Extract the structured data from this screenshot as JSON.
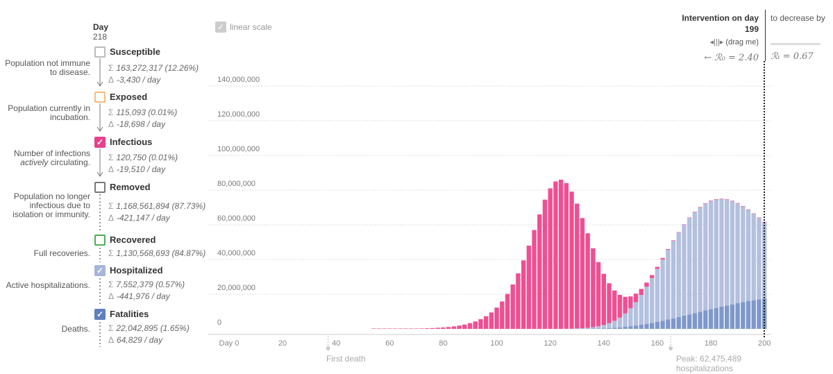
{
  "header": {
    "day_label": "Day",
    "day_value": "218",
    "linear_scale_label": "linear scale"
  },
  "compartments": [
    {
      "name": "Susceptible",
      "desc": "Population not immune to disease.",
      "sum": "163,272,317 (12.26%)",
      "delta": "-3,430 / day",
      "checked": false,
      "color": "#bbbbbb"
    },
    {
      "name": "Exposed",
      "desc": "Population currently in incubation.",
      "sum": "115,093 (0.01%)",
      "delta": "-18,698 / day",
      "checked": false,
      "color": "#fcb97a"
    },
    {
      "name": "Infectious",
      "desc_pre": "Number of infections ",
      "desc_em": "actively",
      "desc_post": " circulating.",
      "sum": "120,750 (0.01%)",
      "delta": "-19,510 / day",
      "checked": true,
      "color": "#e8408b"
    },
    {
      "name": "Removed",
      "desc": "Population no longer infectious due to isolation or immunity.",
      "sum": "1,168,561,894 (87.73%)",
      "delta": "-421,147 / day",
      "checked": false,
      "color": "#777777"
    },
    {
      "name": "Recovered",
      "desc": "Full recoveries.",
      "sum": "1,130,568,693 (84.87%)",
      "checked": false,
      "color": "#4caf50"
    },
    {
      "name": "Hospitalized",
      "desc": "Active hospitalizations.",
      "sum": "7,552,379 (0.57%)",
      "delta": "-441,976 / day",
      "checked": true,
      "color": "#a6b5d8"
    },
    {
      "name": "Fatalities",
      "desc": "Deaths.",
      "sum": "22,042,895 (1.65%)",
      "delta": "64,829 / day",
      "checked": true,
      "color": "#5f7fbf"
    }
  ],
  "intervention": {
    "title": "Intervention on day",
    "day": "199",
    "drag_label": "(drag me)",
    "r0_text": "← ℛ₀ = 2.40",
    "decrease_label": "to decrease by",
    "rt_text": "ℛₜ = 0.67"
  },
  "annotations": {
    "first_death": "First death",
    "peak_line1": "Peak: 62,475,489",
    "peak_line2": "hospitalizations"
  },
  "chart_data": {
    "type": "bar",
    "stacked": true,
    "x_ticks": [
      "Day 0",
      "20",
      "40",
      "60",
      "80",
      "100",
      "120",
      "140",
      "160",
      "180",
      "200"
    ],
    "y_ticks": [
      "0",
      "20,000,000",
      "40,000,000",
      "60,000,000",
      "80,000,000",
      "100,000,000",
      "120,000,000",
      "140,000,000"
    ],
    "xlim": [
      0,
      201
    ],
    "ylim": [
      0,
      150000000
    ],
    "bar_days": [
      0,
      2,
      4,
      6,
      8,
      10,
      12,
      14,
      16,
      18,
      20,
      22,
      24,
      26,
      28,
      30,
      32,
      34,
      36,
      38,
      40,
      42,
      44,
      46,
      48,
      50,
      52,
      54,
      56,
      58,
      60,
      62,
      64,
      66,
      68,
      70,
      72,
      74,
      76,
      78,
      80,
      82,
      84,
      86,
      88,
      90,
      92,
      94,
      96,
      98,
      100,
      102,
      104,
      106,
      108,
      110,
      112,
      114,
      116,
      118,
      120,
      122,
      124,
      126,
      128,
      130,
      132,
      134,
      136,
      138,
      140,
      142,
      144,
      146,
      148,
      150,
      152,
      154,
      156,
      158,
      160,
      162,
      164,
      166,
      168,
      170,
      172,
      174,
      176,
      178,
      180,
      182,
      184,
      186,
      188,
      190,
      192,
      194,
      196,
      198,
      200
    ],
    "series": [
      {
        "name": "Fatalities",
        "color": "#7f98cb",
        "values": [
          0,
          0,
          0,
          0,
          0,
          0,
          0,
          0,
          0,
          0,
          0,
          0,
          0,
          0,
          0,
          0,
          0,
          0,
          0,
          0,
          0,
          0,
          0,
          0,
          0,
          0,
          0,
          0,
          0,
          0,
          0,
          0,
          0,
          0,
          0,
          0,
          0,
          0,
          0,
          0,
          0,
          0,
          0,
          0,
          0,
          0,
          0,
          0,
          0,
          0,
          0,
          0,
          0,
          0,
          0,
          0,
          0,
          0,
          0,
          0,
          0,
          0,
          0,
          10000,
          20000,
          40000,
          70000,
          120000,
          180000,
          260000,
          360000,
          500000,
          680000,
          900000,
          1200000,
          1550000,
          1950000,
          2400000,
          2900000,
          3450000,
          4050000,
          4700000,
          5400000,
          6100000,
          6850000,
          7600000,
          8350000,
          9100000,
          9850000,
          10600000,
          11350000,
          12100000,
          12800000,
          13500000,
          14150000,
          14800000,
          15400000,
          16000000,
          16550000,
          17050000,
          17500000
        ]
      },
      {
        "name": "Hospitalized",
        "color": "#b3c0de",
        "values": [
          0,
          0,
          0,
          0,
          0,
          0,
          0,
          0,
          0,
          0,
          0,
          0,
          0,
          0,
          0,
          0,
          0,
          0,
          0,
          0,
          0,
          0,
          0,
          0,
          0,
          0,
          0,
          0,
          0,
          0,
          0,
          0,
          0,
          0,
          0,
          0,
          0,
          0,
          0,
          0,
          0,
          0,
          0,
          0,
          0,
          0,
          0,
          0,
          0,
          0,
          0,
          0,
          0,
          0,
          0,
          0,
          0,
          0,
          0,
          0,
          10000,
          20000,
          40000,
          70000,
          120000,
          200000,
          320000,
          500000,
          800000,
          1250000,
          1900000,
          2800000,
          4000000,
          5600000,
          7700000,
          10300000,
          13500000,
          17200000,
          21400000,
          25900000,
          30600000,
          35400000,
          40100000,
          44600000,
          48700000,
          52400000,
          55600000,
          58200000,
          60200000,
          61600000,
          62400000,
          62475489,
          62000000,
          61000000,
          59500000,
          57500000,
          55200000,
          52600000,
          49800000,
          46900000,
          44000000
        ]
      },
      {
        "name": "Infectious",
        "color": "#ee4f93",
        "values": [
          0,
          0,
          0,
          0,
          0,
          0,
          0,
          0,
          0,
          0,
          0,
          0,
          0,
          0,
          0,
          0,
          0,
          0,
          0,
          0,
          0,
          0,
          0,
          0,
          0,
          0,
          0,
          10000,
          20000,
          30000,
          40000,
          60000,
          80000,
          110000,
          150000,
          200000,
          270000,
          360000,
          480000,
          640000,
          850000,
          1100000,
          1450000,
          1900000,
          2500000,
          3300000,
          4300000,
          5600000,
          7300000,
          9500000,
          12300000,
          15800000,
          20200000,
          25600000,
          32000000,
          39500000,
          48000000,
          57000000,
          66000000,
          74500000,
          81000000,
          85000000,
          86000000,
          84000000,
          79000000,
          72000000,
          63500000,
          54500000,
          45500000,
          37000000,
          29500000,
          23000000,
          17500000,
          13100000,
          9600000,
          6900000,
          4900000,
          3450000,
          2400000,
          1650000,
          1120000,
          760000,
          510000,
          340000,
          230000,
          150000,
          100000,
          70000,
          50000,
          40000,
          30000,
          20000,
          15000,
          10000,
          8000,
          6000,
          4000,
          3000,
          2000,
          1000,
          120750
        ]
      }
    ]
  }
}
